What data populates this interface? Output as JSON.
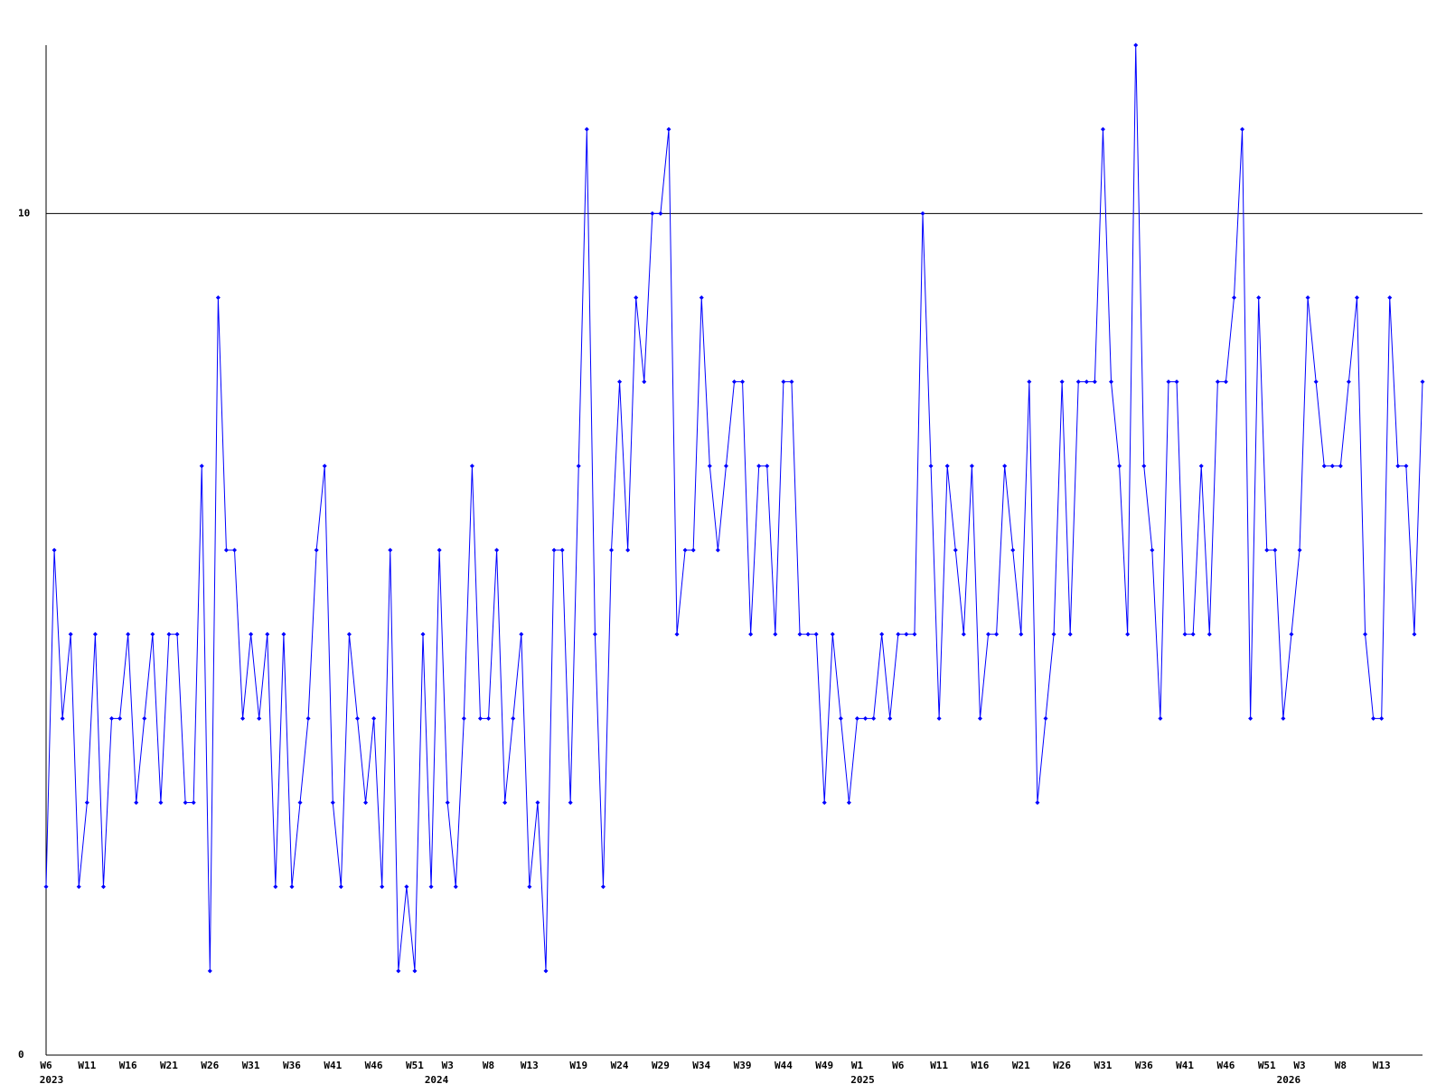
{
  "chart_data": {
    "type": "line",
    "categories": [
      "W6",
      null,
      null,
      null,
      null,
      "W11",
      null,
      null,
      null,
      null,
      "W16",
      null,
      null,
      null,
      null,
      "W21",
      null,
      null,
      null,
      null,
      "W26",
      null,
      null,
      null,
      null,
      "W31",
      null,
      null,
      null,
      null,
      "W36",
      null,
      null,
      null,
      null,
      "W41",
      null,
      null,
      null,
      null,
      "W46",
      null,
      null,
      null,
      null,
      "W51",
      null,
      null,
      null,
      "W3",
      null,
      null,
      null,
      null,
      "W8",
      null,
      null,
      null,
      null,
      "W13",
      null,
      null,
      null,
      null,
      null,
      "W19",
      null,
      null,
      null,
      null,
      "W24",
      null,
      null,
      null,
      null,
      "W29",
      null,
      null,
      null,
      null,
      "W34",
      null,
      null,
      null,
      null,
      "W39",
      null,
      null,
      null,
      null,
      "W44",
      null,
      null,
      null,
      null,
      "W49",
      null,
      null,
      null,
      "W1",
      null,
      null,
      null,
      null,
      "W6",
      null,
      null,
      null,
      null,
      "W11",
      null,
      null,
      null,
      null,
      "W16",
      null,
      null,
      null,
      null,
      "W21",
      null,
      null,
      null,
      null,
      "W26",
      null,
      null,
      null,
      null,
      "W31",
      null,
      null,
      null,
      null,
      "W36",
      null,
      null,
      null,
      null,
      "W41",
      null,
      null,
      null,
      null,
      "W46",
      null,
      null,
      null,
      null,
      "W51",
      null,
      null,
      null,
      "W3",
      null,
      null,
      null,
      null,
      "W8",
      null,
      null,
      null,
      null,
      "W13",
      null,
      null,
      null,
      null,
      null
    ],
    "years": [
      "2023",
      null,
      null,
      null,
      null,
      null,
      null,
      null,
      null,
      null,
      null,
      null,
      null,
      null,
      null,
      null,
      null,
      null,
      null,
      null,
      null,
      null,
      null,
      null,
      null,
      null,
      null,
      null,
      null,
      null,
      null,
      null,
      null,
      null,
      null,
      null,
      null,
      null,
      null,
      null,
      null,
      null,
      null,
      null,
      null,
      null,
      null,
      "2024",
      null,
      null,
      null,
      null,
      null,
      null,
      null,
      null,
      null,
      null,
      null,
      null,
      null,
      null,
      null,
      null,
      null,
      null,
      null,
      null,
      null,
      null,
      null,
      null,
      null,
      null,
      null,
      null,
      null,
      null,
      null,
      null,
      null,
      null,
      null,
      null,
      null,
      null,
      null,
      null,
      null,
      null,
      null,
      null,
      null,
      null,
      null,
      null,
      null,
      null,
      null,
      "2025",
      null,
      null,
      null,
      null,
      null,
      null,
      null,
      null,
      null,
      null,
      null,
      null,
      null,
      null,
      null,
      null,
      null,
      null,
      null,
      null,
      null,
      null,
      null,
      null,
      null,
      null,
      null,
      null,
      null,
      null,
      null,
      null,
      null,
      null,
      null,
      null,
      null,
      null,
      null,
      null,
      null,
      null,
      null,
      null,
      null,
      null,
      null,
      null,
      null,
      null,
      null,
      "2026",
      null,
      null,
      null,
      null,
      null,
      null,
      null,
      null,
      null,
      null,
      null,
      null,
      null,
      null,
      null,
      null,
      null
    ],
    "series": [
      {
        "color": "#0000ff",
        "values": [
          2,
          6,
          4,
          5,
          2,
          3,
          5,
          2,
          4,
          4,
          5,
          3,
          4,
          5,
          3,
          5,
          5,
          3,
          3,
          7,
          1,
          9,
          6,
          6,
          4,
          5,
          4,
          5,
          2,
          5,
          2,
          3,
          4,
          6,
          7,
          3,
          2,
          5,
          4,
          3,
          4,
          2,
          6,
          1,
          2,
          1,
          5,
          2,
          6,
          3,
          2,
          4,
          7,
          4,
          4,
          6,
          3,
          4,
          5,
          2,
          3,
          1,
          6,
          6,
          3,
          7,
          11,
          5,
          2,
          6,
          8,
          6,
          9,
          8,
          10,
          10,
          11,
          5,
          6,
          6,
          9,
          7,
          6,
          7,
          8,
          8,
          5,
          7,
          7,
          5,
          8,
          8,
          5,
          5,
          5,
          3,
          5,
          4,
          3,
          4,
          4,
          4,
          5,
          4,
          5,
          5,
          5,
          10,
          7,
          4,
          7,
          6,
          5,
          7,
          4,
          5,
          5,
          7,
          6,
          5,
          8,
          3,
          4,
          5,
          8,
          5,
          8,
          8,
          8,
          11,
          8,
          7,
          5,
          12,
          7,
          6,
          4,
          8,
          8,
          5,
          5,
          7,
          5,
          8,
          8,
          9,
          11,
          4,
          9,
          6,
          6,
          4,
          5,
          6,
          9,
          8,
          7,
          7,
          7,
          8,
          9,
          5,
          4,
          4,
          9,
          7,
          7,
          5,
          8
        ]
      }
    ],
    "ylim": [
      0,
      12
    ],
    "yticks": [
      0,
      10
    ],
    "grid": true
  }
}
